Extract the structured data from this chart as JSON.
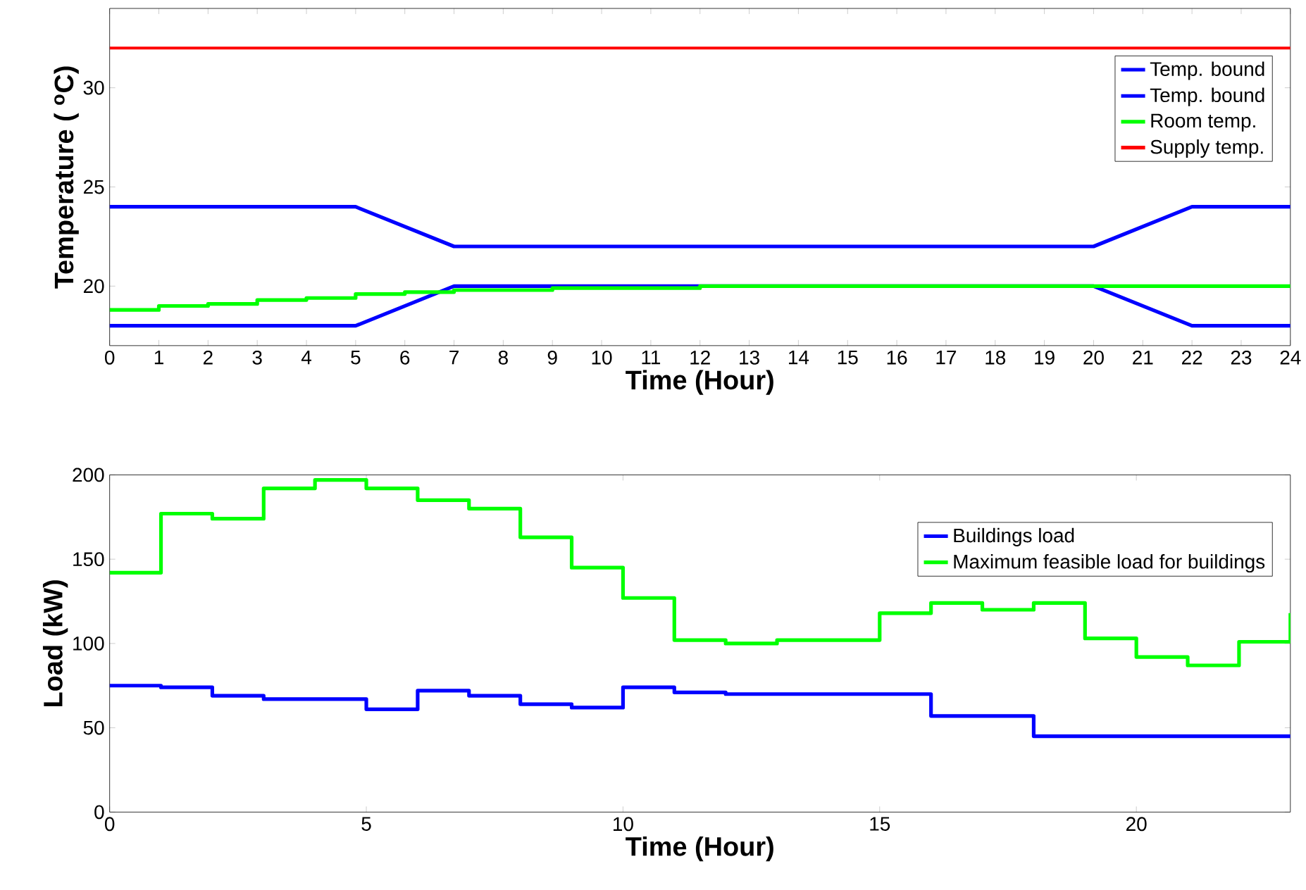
{
  "chart_data": [
    {
      "type": "line",
      "xlabel": "Time (Hour)",
      "ylabel": "Temperature ( $^{o}$C)",
      "xlim": [
        0,
        24
      ],
      "ylim": [
        17,
        34
      ],
      "xticks": [
        0,
        1,
        2,
        3,
        4,
        5,
        6,
        7,
        8,
        9,
        10,
        11,
        12,
        13,
        14,
        15,
        16,
        17,
        18,
        19,
        20,
        21,
        22,
        23,
        24
      ],
      "yticks": [
        20,
        25,
        30
      ],
      "legend": "top right",
      "line_style": "solid",
      "series": [
        {
          "name": "Temp. bound",
          "color": "#0000ff",
          "x": [
            0,
            5,
            7,
            20,
            22,
            24
          ],
          "values": [
            24,
            24,
            22,
            22,
            24,
            24
          ]
        },
        {
          "name": "Temp. bound",
          "color": "#0000ff",
          "x": [
            0,
            5,
            7,
            20,
            22,
            24
          ],
          "values": [
            18,
            18,
            20,
            20,
            18,
            18
          ]
        },
        {
          "name": "Room temp.",
          "type": "step",
          "color": "#00ff00",
          "x": [
            0,
            1,
            2,
            3,
            4,
            5,
            6,
            7,
            9,
            12,
            24
          ],
          "values": [
            18.8,
            19.0,
            19.1,
            19.3,
            19.4,
            19.6,
            19.7,
            19.8,
            19.9,
            20,
            20
          ]
        },
        {
          "name": "Supply temp.",
          "color": "#ff0000",
          "x": [
            0,
            24
          ],
          "values": [
            32,
            32
          ]
        }
      ]
    },
    {
      "type": "step",
      "xlabel": "Time (Hour)",
      "ylabel": "Load (kW)",
      "xlim": [
        0,
        23
      ],
      "ylim": [
        0,
        200
      ],
      "xticks": [
        0,
        5,
        10,
        15,
        20
      ],
      "yticks": [
        0,
        50,
        100,
        150,
        200
      ],
      "legend": "top right",
      "line_style": "solid",
      "x": [
        0,
        1,
        2,
        3,
        4,
        5,
        6,
        7,
        8,
        9,
        10,
        11,
        12,
        13,
        14,
        15,
        16,
        17,
        18,
        19,
        20,
        21,
        22,
        23
      ],
      "series": [
        {
          "name": "Buildings load",
          "color": "#0000ff",
          "values": [
            75,
            74,
            69,
            67,
            67,
            61,
            72,
            69,
            64,
            62,
            74,
            71,
            70,
            70,
            70,
            70,
            57,
            57,
            45,
            45,
            45,
            45,
            45,
            45
          ]
        },
        {
          "name": "Maximum feasible load for buildings",
          "color": "#00ff00",
          "values": [
            142,
            177,
            174,
            192,
            197,
            192,
            185,
            180,
            163,
            145,
            127,
            102,
            100,
            102,
            102,
            118,
            124,
            120,
            124,
            103,
            92,
            87,
            101,
            118
          ]
        }
      ]
    }
  ]
}
